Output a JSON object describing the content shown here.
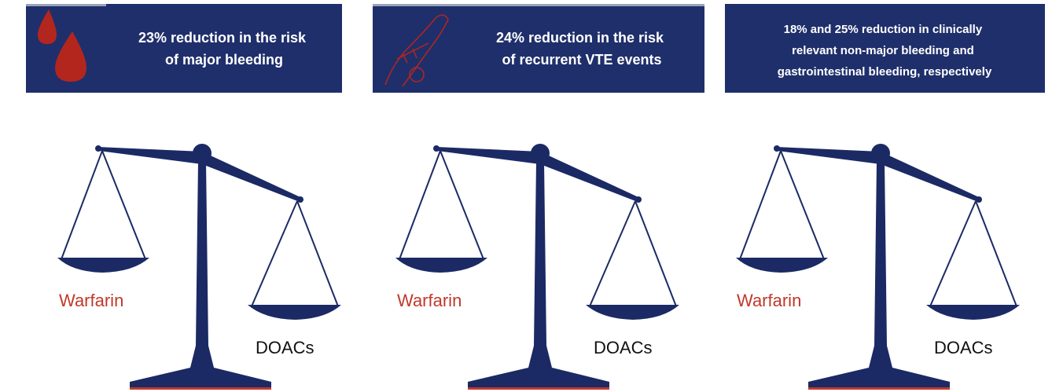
{
  "panels": [
    {
      "banner": [
        "23% reduction in the risk",
        "of major bleeding"
      ],
      "left_pan": "Warfarin",
      "right_pan": "DOACs"
    },
    {
      "banner": [
        "24% reduction in the risk",
        "of recurrent VTE events"
      ],
      "left_pan": "Warfarin",
      "right_pan": "DOACs"
    },
    {
      "banner": [
        "18% and 25% reduction in clinically",
        "relevant non-major bleeding and",
        "gastrointestinal bleeding, respectively"
      ],
      "left_pan": "Warfarin",
      "right_pan": "DOACs"
    }
  ]
}
